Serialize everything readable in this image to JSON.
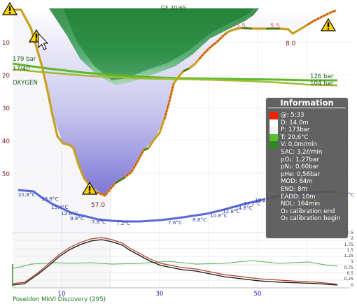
{
  "window": {
    "footer_label": "Poseidon MkVI Discovery (295)"
  },
  "plot": {
    "gf_label": "GF 30/65",
    "depth_ticks": [
      "10",
      "20",
      "30",
      "40",
      "50"
    ],
    "time_ticks": [
      "10",
      "30",
      "50"
    ],
    "tank_pressure_start": "179 bar",
    "gas_mix": "17/40",
    "gas_name": "OXYGEN",
    "tank_pressure_end_1": "126 bar",
    "tank_pressure_end_2": "104 bar",
    "max_depth": "57.0",
    "end_depth": "8.0",
    "ceiling_marks": [
      "5.5",
      "5.5"
    ],
    "temperatures": [
      "21.8°C",
      "19.8°C",
      "15.4°C",
      "12.0°C",
      "9.8°C",
      "7.8°C",
      "7.2°C",
      "7.6°C",
      "8.8°C",
      "10.8°C",
      "12.8°C",
      "14.8°C",
      "17.2°C",
      "19.2°C",
      "21.0°C"
    ],
    "ppo2_scale": [
      "2.5",
      "2",
      "1.75",
      "1.5",
      "1.25",
      "1",
      "0.75",
      "0.5",
      "0.25",
      "0"
    ],
    "colors": {
      "profile": "#c8a020",
      "ascent_fast": "#e23a16",
      "gas_line": "#5cb82a",
      "temperature": "#3a4fd0",
      "ceiling": "#2d8c3c",
      "deco_fill": "#8880dc"
    }
  },
  "info": {
    "title": "Information",
    "rows": [
      {
        "text": "@: 5:33",
        "swatch": "#ee2200"
      },
      {
        "text": "D: 14,0m",
        "swatch": "#ffffff"
      },
      {
        "text": "P: 173bar",
        "swatch": "#f2f2f2"
      },
      {
        "text": "T: 20,6°C",
        "swatch": "#55c030"
      },
      {
        "text": "V: 0,0m/min",
        "swatch": "#2e8a1e"
      },
      {
        "text": "SAC: 3,2ℓ/min"
      },
      {
        "text": "pO₂: 1,27bar"
      },
      {
        "text": "pN₂: 0,60bar"
      },
      {
        "text": "pHe: 0,56bar"
      },
      {
        "text": "MOD: 84m"
      },
      {
        "text": "END: 8m"
      },
      {
        "text": "EADD: 10m"
      },
      {
        "text": "NDL: 164min"
      },
      {
        "text": "O₂ calibration end"
      },
      {
        "text": "O₂ calibration begin"
      }
    ]
  },
  "icons": [
    "warning-icon",
    "mouse-cursor-icon"
  ]
}
